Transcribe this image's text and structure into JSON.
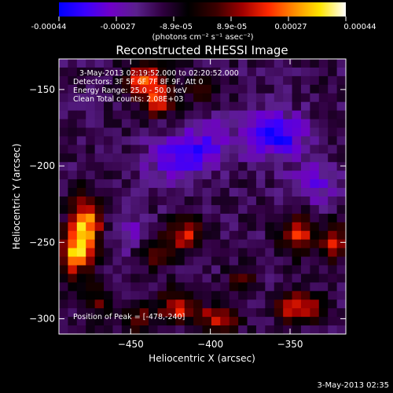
{
  "colorbar": {
    "tick_labels": [
      "-0.00044",
      "-0.00027",
      "-8.9e-05",
      "8.9e-05",
      "0.00027",
      "0.00044"
    ],
    "unit_label": "(photons cm⁻² s⁻¹ asec⁻²)",
    "range": [
      -0.00044,
      0.00044
    ]
  },
  "annotations": {
    "time_range": "3-May-2013 02:19:52.000 to 02:20:52.000",
    "detectors": "Detectors: 3F 5F 6F 7F 8F 9F, Att 0",
    "energy": "Energy Range: 25.0 - 50.0 keV",
    "clean": "Clean     Total counts: 2.08E+03",
    "peak": "Position of Peak = [-478,-240]"
  },
  "footer_timestamp": "3-May-2013 02:35",
  "chart_data": {
    "type": "heatmap",
    "title": "Reconstructed RHESSI Image",
    "xlabel": "Heliocentric X (arcsec)",
    "ylabel": "Heliocentric Y (arcsec)",
    "xlim": [
      -495,
      -315
    ],
    "ylim": [
      -310,
      -130
    ],
    "x_ticks": [
      -450,
      -400,
      -350
    ],
    "y_ticks": [
      -300,
      -250,
      -200,
      -150
    ],
    "x_tick_labels": [
      "−450",
      "−400",
      "−350"
    ],
    "y_tick_labels": [
      "−300",
      "−250",
      "−200",
      "−150"
    ],
    "colormap": [
      "#0000ff",
      "#3a00ff",
      "#7000c8",
      "#5a208c",
      "#300040",
      "#000000",
      "#3c0000",
      "#a00000",
      "#ff2800",
      "#ff8c00",
      "#ffe600",
      "#ffffff"
    ],
    "grid": "32x32",
    "peak_position": [
      -478,
      -240
    ],
    "sources": [
      {
        "x": -478,
        "y": -240,
        "amp": 0.00044,
        "sx": 7,
        "sy": 14
      },
      {
        "x": -486,
        "y": -258,
        "amp": 0.00034,
        "sx": 7,
        "sy": 10
      },
      {
        "x": -440,
        "y": -145,
        "amp": 0.0004,
        "sx": 9,
        "sy": 8
      },
      {
        "x": -432,
        "y": -160,
        "amp": 0.00032,
        "sx": 6,
        "sy": 6
      },
      {
        "x": -415,
        "y": -245,
        "amp": 0.00028,
        "sx": 7,
        "sy": 8
      },
      {
        "x": -435,
        "y": -255,
        "amp": 0.0002,
        "sx": 8,
        "sy": 8
      },
      {
        "x": -420,
        "y": -292,
        "amp": 0.00032,
        "sx": 8,
        "sy": 7
      },
      {
        "x": -445,
        "y": -300,
        "amp": 0.00022,
        "sx": 7,
        "sy": 6
      },
      {
        "x": -395,
        "y": -300,
        "amp": 0.0003,
        "sx": 9,
        "sy": 6
      },
      {
        "x": -380,
        "y": -275,
        "amp": 0.00018,
        "sx": 6,
        "sy": 6
      },
      {
        "x": -345,
        "y": -245,
        "amp": 0.0003,
        "sx": 8,
        "sy": 9
      },
      {
        "x": -322,
        "y": -250,
        "amp": 0.0003,
        "sx": 5,
        "sy": 8
      },
      {
        "x": -345,
        "y": -292,
        "amp": 0.00032,
        "sx": 10,
        "sy": 7
      },
      {
        "x": -470,
        "y": -290,
        "amp": 0.00018,
        "sx": 7,
        "sy": 7
      },
      {
        "x": -405,
        "y": -150,
        "amp": 0.00012,
        "sx": 8,
        "sy": 8
      },
      {
        "x": -420,
        "y": -195,
        "amp": -0.0002,
        "sx": 14,
        "sy": 12
      },
      {
        "x": -360,
        "y": -180,
        "amp": -0.0003,
        "sx": 14,
        "sy": 10
      },
      {
        "x": -400,
        "y": -185,
        "amp": -0.00015,
        "sx": 10,
        "sy": 10
      },
      {
        "x": -450,
        "y": -245,
        "amp": -0.00014,
        "sx": 10,
        "sy": 8
      },
      {
        "x": -335,
        "y": -212,
        "amp": -0.00016,
        "sx": 12,
        "sy": 10
      }
    ]
  }
}
